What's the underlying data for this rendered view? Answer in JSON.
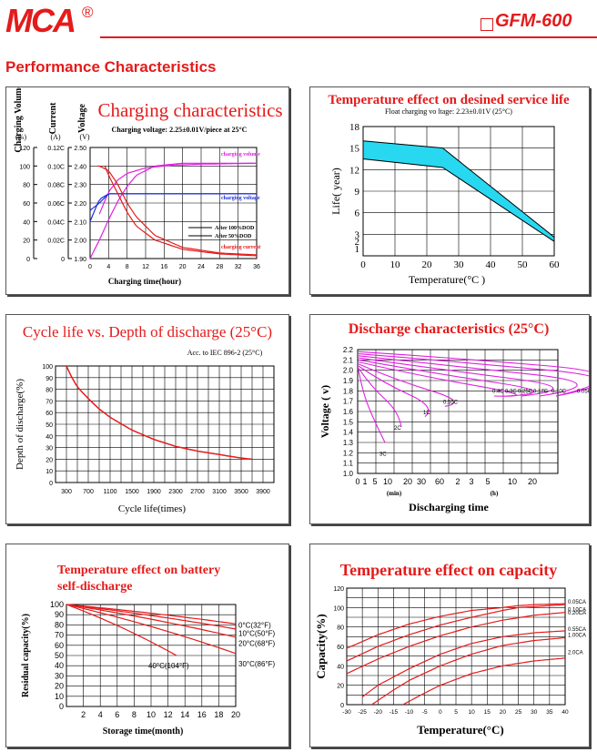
{
  "header": {
    "logo": "MCA",
    "registered": "®",
    "model": "GFM-600",
    "section_title": "Performance Characteristics"
  },
  "colors": {
    "accent": "#e41b1b",
    "magenta": "#e020e0",
    "blue": "#1a2ee0",
    "cyan": "#28d8f0"
  },
  "chart_data": [
    {
      "id": "charging",
      "type": "line",
      "title": "Charging characteristics",
      "subtitle": "Charging voltage: 2.25±0.01V/piece at 25°C",
      "axes_headers": [
        "Charging Volume",
        "Current",
        "Voltage"
      ],
      "units": [
        "(%)",
        "(A)",
        "(V)"
      ],
      "xlabel": "Charging time(hour)",
      "x_ticks": [
        "0",
        "4",
        "8",
        "12",
        "16",
        "20",
        "24",
        "28",
        "32",
        "36"
      ],
      "y_ticks_volume": [
        "120",
        "100",
        "80",
        "60",
        "40",
        "20",
        "0"
      ],
      "y_ticks_current": [
        "0.12C",
        "0.10C",
        "0.08C",
        "0.06C",
        "0.04C",
        "0.02C",
        "0"
      ],
      "y_ticks_voltage": [
        "2.50",
        "2.40",
        "2.30",
        "2.20",
        "2.10",
        "2.00",
        "1.90"
      ],
      "legend": [
        "After 100%DOD",
        "After 50%DOD"
      ],
      "annotations": [
        "charging volume",
        "charging voltage",
        "charging current"
      ],
      "series": [
        {
          "label_ref": "charging volume",
          "unit": "%",
          "x": [
            0,
            2,
            4,
            6,
            8,
            10,
            14,
            20,
            28,
            36
          ],
          "y": [
            0,
            20,
            42,
            62,
            78,
            90,
            100,
            103,
            103,
            103
          ]
        },
        {
          "label_ref": "charging volume",
          "unit": "%",
          "x": [
            2,
            4,
            6,
            8,
            12,
            18,
            24,
            36
          ],
          "y": [
            48,
            72,
            85,
            92,
            98,
            101,
            102,
            103
          ]
        },
        {
          "label_ref": "charging voltage",
          "unit": "V",
          "x": [
            0,
            2,
            4,
            6,
            8,
            10,
            14,
            20,
            36
          ],
          "y": [
            2.16,
            2.2,
            2.25,
            2.25,
            2.25,
            2.25,
            2.25,
            2.25,
            2.25
          ]
        },
        {
          "label_ref": "charging voltage",
          "unit": "V",
          "x": [
            0,
            1,
            2,
            4,
            5,
            8,
            36
          ],
          "y": [
            2.1,
            2.16,
            2.22,
            2.25,
            2.25,
            2.25,
            2.25
          ]
        },
        {
          "label_ref": "charging current",
          "unit": "C",
          "x": [
            1.5,
            2,
            4,
            6,
            8,
            10,
            14,
            20,
            28,
            36
          ],
          "y": [
            0.1,
            0.1,
            0.095,
            0.08,
            0.06,
            0.045,
            0.025,
            0.012,
            0.006,
            0.004
          ]
        },
        {
          "label_ref": "charging current",
          "unit": "C",
          "x": [
            3.2,
            4,
            6,
            8,
            10,
            14,
            20,
            28,
            36
          ],
          "y": [
            0.1,
            0.09,
            0.07,
            0.05,
            0.035,
            0.02,
            0.01,
            0.005,
            0.003
          ]
        }
      ],
      "xlim": [
        0,
        36
      ]
    },
    {
      "id": "temp_life",
      "type": "area",
      "title": "Temperature effect on desined service life",
      "subtitle": "Float charging vo  ltage:  2.23±0.01V   (25°C)",
      "xlabel": "Temperature(°C )",
      "ylabel": "Life( year)",
      "x_ticks": [
        "0",
        "10",
        "20",
        "30",
        "40",
        "50",
        "60"
      ],
      "y_ticks": [
        "18",
        "15",
        "12",
        "9",
        "6",
        "3",
        "2",
        "1"
      ],
      "band_upper": {
        "x": [
          0,
          25,
          60
        ],
        "y": [
          16,
          15,
          2.6
        ]
      },
      "band_lower": {
        "x": [
          0,
          25,
          60
        ],
        "y": [
          13.5,
          12.3,
          2
        ]
      },
      "xlim": [
        0,
        60
      ],
      "ylim": [
        0,
        18
      ]
    },
    {
      "id": "cycle_life",
      "type": "line",
      "title": "Cycle life vs. Depth of discharge (25°C)",
      "subtitle": "Acc. to IEC 896-2 (25°C)",
      "xlabel": "Cycle life(times)",
      "ylabel": "Depth of discharge(%)",
      "x_ticks": [
        "300",
        "700",
        "1100",
        "1500",
        "1900",
        "2300",
        "2700",
        "3100",
        "3500",
        "3900"
      ],
      "y_ticks": [
        "100",
        "90",
        "80",
        "70",
        "60",
        "50",
        "40",
        "30",
        "20",
        "10",
        "0"
      ],
      "series": [
        {
          "x": [
            300,
            400,
            500,
            700,
            900,
            1100,
            1500,
            1900,
            2300,
            2700,
            3100,
            3500,
            3700
          ],
          "y": [
            100,
            90,
            82,
            72,
            63,
            56,
            45,
            37,
            31,
            27,
            24,
            21,
            20
          ]
        }
      ],
      "xlim": [
        100,
        4100
      ],
      "ylim": [
        0,
        100
      ]
    },
    {
      "id": "discharge",
      "type": "line",
      "title": "Discharge characteristics (25°C)",
      "xlabel": "Discharging time",
      "ylabel": "Voltage ( v)",
      "x_ticks": [
        "0",
        "1",
        "5",
        "10",
        "20",
        "30",
        "60",
        "2",
        "3",
        "5",
        "10",
        "20"
      ],
      "x_units": [
        "(min)",
        "(h)"
      ],
      "y_ticks": [
        "2.2",
        "2.1",
        "2.0",
        "1.9",
        "1.8",
        "1.7",
        "1.6",
        "1.5",
        "1.4",
        "1.3",
        "1.2",
        "1.1",
        "1.0"
      ],
      "curve_labels": [
        "0.4C",
        "0.3C",
        "0.25C",
        "0.17C",
        "0.10C",
        "0.05C",
        "0.55C",
        "1C",
        "2C",
        "3C"
      ]
    },
    {
      "id": "self_discharge",
      "type": "line",
      "title": "Temperature effect on battery self-discharge",
      "xlabel": "Storage time(month)",
      "ylabel": "Residual capacity(%)",
      "x_ticks": [
        "2",
        "4",
        "6",
        "8",
        "10",
        "12",
        "14",
        "16",
        "18",
        "20"
      ],
      "y_ticks": [
        "100",
        "90",
        "80",
        "70",
        "60",
        "50",
        "40",
        "30",
        "20",
        "10",
        "0"
      ],
      "series": [
        {
          "name": "0°C(32°F)",
          "x": [
            0,
            20
          ],
          "y": [
            100,
            81
          ]
        },
        {
          "name": "10°C(50°F)",
          "x": [
            0,
            20
          ],
          "y": [
            100,
            76
          ]
        },
        {
          "name": "20°C(68°F)",
          "x": [
            0,
            20
          ],
          "y": [
            100,
            68
          ]
        },
        {
          "name": "30°C(86°F)",
          "x": [
            0,
            20
          ],
          "y": [
            100,
            52
          ]
        },
        {
          "name": "40°C(104°F)",
          "x": [
            0,
            13
          ],
          "y": [
            100,
            50
          ]
        }
      ],
      "xlim": [
        0,
        20
      ],
      "ylim": [
        0,
        100
      ]
    },
    {
      "id": "temp_capacity",
      "type": "line",
      "title": "Temperature effect on capacity",
      "xlabel": "Temperature(°C)",
      "ylabel": "Capacity(%)",
      "x_ticks": [
        "-30",
        "-25",
        "-20",
        "-15",
        "-10",
        "-5",
        "0",
        "5",
        "10",
        "15",
        "20",
        "25",
        "30",
        "35",
        "40"
      ],
      "y_ticks": [
        "120",
        "100",
        "80",
        "60",
        "40",
        "20",
        "0"
      ],
      "series": [
        {
          "name": "0.05CA",
          "x": [
            -30,
            -20,
            -10,
            0,
            10,
            20,
            25,
            30,
            40
          ],
          "y": [
            58,
            72,
            83,
            91,
            97,
            100,
            102,
            103,
            104
          ]
        },
        {
          "name": "0.10CA",
          "x": [
            -30,
            -20,
            -10,
            0,
            10,
            20,
            25,
            30,
            40
          ],
          "y": [
            45,
            60,
            72,
            82,
            90,
            97,
            100,
            101,
            103
          ]
        },
        {
          "name": "0.20CA",
          "x": [
            -30,
            -20,
            -10,
            0,
            10,
            20,
            30,
            40
          ],
          "y": [
            32,
            47,
            60,
            71,
            80,
            87,
            92,
            95
          ]
        },
        {
          "name": "0.55CA",
          "x": [
            -25,
            -20,
            -10,
            0,
            10,
            20,
            30,
            40
          ],
          "y": [
            8,
            20,
            37,
            52,
            63,
            70,
            74,
            76
          ]
        },
        {
          "name": "1.00CA",
          "x": [
            -22,
            -15,
            -10,
            0,
            10,
            20,
            30,
            40
          ],
          "y": [
            0,
            15,
            25,
            40,
            52,
            61,
            66,
            69
          ]
        },
        {
          "name": "2.0CA",
          "x": [
            -12,
            -5,
            0,
            10,
            20,
            30,
            40
          ],
          "y": [
            0,
            12,
            20,
            32,
            40,
            45,
            48
          ]
        }
      ],
      "xlim": [
        -30,
        40
      ],
      "ylim": [
        0,
        120
      ]
    }
  ]
}
